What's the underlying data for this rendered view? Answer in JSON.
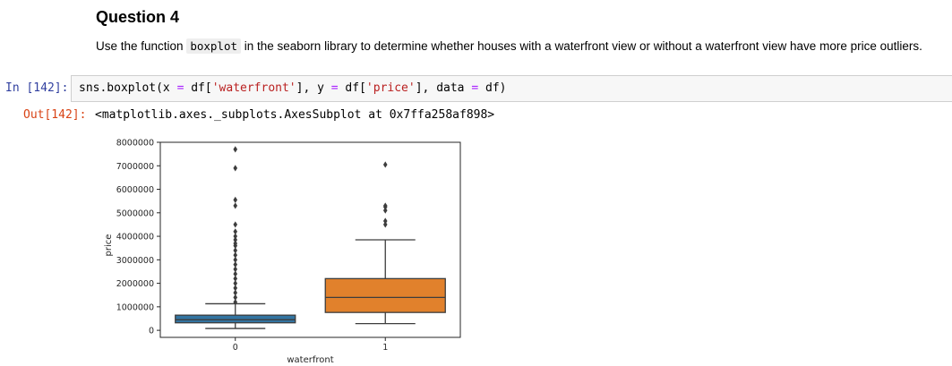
{
  "markdown": {
    "heading": "Question 4",
    "text_before": "Use the function ",
    "code": "boxplot",
    "text_after": " in the seaborn library to determine whether houses with a waterfront view or without a waterfront view have more price outliers."
  },
  "input_cell": {
    "prompt": "In [142]:",
    "code_parts": [
      {
        "t": "sns.boxplot(x ",
        "c": ""
      },
      {
        "t": "=",
        "c": "op"
      },
      {
        "t": " df[",
        "c": ""
      },
      {
        "t": "'waterfront'",
        "c": "str"
      },
      {
        "t": "], y ",
        "c": ""
      },
      {
        "t": "=",
        "c": "op"
      },
      {
        "t": " df[",
        "c": ""
      },
      {
        "t": "'price'",
        "c": "str"
      },
      {
        "t": "], data ",
        "c": ""
      },
      {
        "t": "=",
        "c": "op"
      },
      {
        "t": " df)",
        "c": ""
      }
    ]
  },
  "output_cell": {
    "prompt": "Out[142]:",
    "text": "<matplotlib.axes._subplots.AxesSubplot at 0x7ffa258af898>"
  },
  "chart_data": {
    "type": "box",
    "xlabel": "waterfront",
    "ylabel": "price",
    "categories": [
      "0",
      "1"
    ],
    "ylim": [
      -300000,
      8000000
    ],
    "yticks": [
      0,
      1000000,
      2000000,
      3000000,
      4000000,
      5000000,
      6000000,
      7000000,
      8000000
    ],
    "ytick_labels": [
      "0",
      "1000000",
      "2000000",
      "3000000",
      "4000000",
      "5000000",
      "6000000",
      "7000000",
      "8000000"
    ],
    "boxes": [
      {
        "category": "0",
        "color": "#3274a1",
        "whisker_low": 78000,
        "q1": 320000,
        "median": 450000,
        "q3": 645000,
        "whisker_high": 1130000,
        "outliers": [
          1200000,
          1400000,
          1600000,
          1800000,
          2000000,
          2200000,
          2400000,
          2600000,
          2800000,
          3000000,
          3200000,
          3400000,
          3600000,
          3700000,
          3850000,
          4000000,
          4200000,
          4500000,
          5300000,
          5550000,
          6900000,
          7700000
        ]
      },
      {
        "category": "1",
        "color": "#e1812c",
        "whisker_low": 285000,
        "q1": 760000,
        "median": 1400000,
        "q3": 2200000,
        "whisker_high": 3850000,
        "outliers": [
          4500000,
          4650000,
          5100000,
          5250000,
          5300000,
          7050000
        ]
      }
    ]
  }
}
